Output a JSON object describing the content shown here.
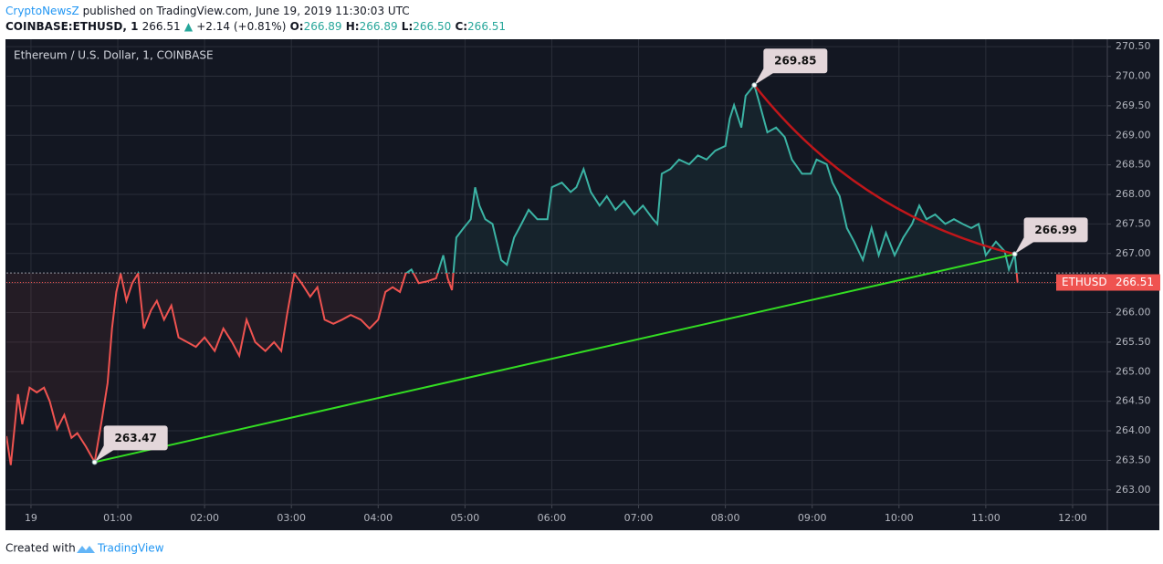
{
  "header": {
    "author": "CryptoNewsZ",
    "published": "published on TradingView.com, June 19, 2019 11:30:03 UTC",
    "symbol": "COINBASE:ETHUSD, 1",
    "price": "266.51",
    "arrow": "▲",
    "change": "+2.14 (+0.81%)",
    "o_label": "O:",
    "o": "266.89",
    "h_label": "H:",
    "h": "266.89",
    "l_label": "L:",
    "l": "266.50",
    "c_label": "C:",
    "c": "266.51"
  },
  "chart_data": {
    "type": "line",
    "title": "Ethereum / U.S. Dollar, 1, COINBASE",
    "x": [
      -17,
      -14,
      -9,
      -6,
      -1,
      4,
      9,
      13,
      18,
      23,
      28,
      32,
      38,
      44,
      49,
      53,
      56,
      59,
      62,
      66,
      70,
      74,
      78,
      83,
      87,
      92,
      97,
      102,
      108,
      114,
      120,
      127,
      133,
      139,
      144,
      149,
      155,
      162,
      168,
      173,
      177,
      182,
      187,
      193,
      198,
      203,
      209,
      215,
      221,
      228,
      234,
      240,
      245,
      250,
      255,
      259,
      263,
      268,
      274,
      280,
      285,
      288,
      291,
      294,
      299,
      304,
      307,
      310,
      314,
      319,
      325,
      329,
      334,
      339,
      344,
      350,
      357,
      360,
      367,
      373,
      377,
      382,
      387,
      393,
      398,
      404,
      410,
      417,
      423,
      430,
      433,
      436,
      442,
      448,
      455,
      461,
      467,
      473,
      480,
      483,
      486,
      491,
      494,
      500,
      503,
      509,
      515,
      521,
      526,
      533,
      539,
      543,
      550,
      554,
      559,
      564,
      569,
      575,
      581,
      586,
      591,
      597,
      603,
      609,
      614,
      619,
      625,
      632,
      638,
      644,
      650,
      655,
      660,
      667,
      673,
      676,
      680,
      682
    ],
    "values": [
      263.91,
      263.42,
      264.62,
      264.11,
      264.73,
      264.65,
      264.73,
      264.5,
      264.03,
      264.27,
      263.88,
      263.96,
      263.73,
      263.47,
      264.19,
      264.81,
      265.73,
      266.35,
      266.66,
      266.2,
      266.5,
      266.66,
      265.73,
      266.04,
      266.2,
      265.88,
      266.12,
      265.58,
      265.5,
      265.42,
      265.58,
      265.35,
      265.73,
      265.5,
      265.27,
      265.88,
      265.5,
      265.35,
      265.5,
      265.35,
      265.96,
      266.66,
      266.5,
      266.27,
      266.43,
      265.88,
      265.81,
      265.88,
      265.96,
      265.88,
      265.73,
      265.88,
      266.35,
      266.43,
      266.35,
      266.66,
      266.73,
      266.5,
      266.53,
      266.58,
      266.97,
      266.58,
      266.38,
      267.27,
      267.43,
      267.58,
      268.12,
      267.81,
      267.58,
      267.5,
      266.89,
      266.81,
      267.27,
      267.5,
      267.74,
      267.58,
      267.58,
      268.12,
      268.2,
      268.04,
      268.12,
      268.43,
      268.04,
      267.81,
      267.97,
      267.74,
      267.89,
      267.66,
      267.81,
      267.58,
      267.5,
      268.35,
      268.43,
      268.59,
      268.51,
      268.66,
      268.59,
      268.74,
      268.82,
      269.28,
      269.51,
      269.13,
      269.67,
      269.85,
      269.59,
      269.05,
      269.13,
      268.97,
      268.59,
      268.35,
      268.35,
      268.59,
      268.51,
      268.2,
      267.97,
      267.43,
      267.2,
      266.89,
      267.43,
      266.97,
      267.35,
      266.97,
      267.27,
      267.5,
      267.81,
      267.58,
      267.66,
      267.5,
      267.58,
      267.5,
      267.43,
      267.5,
      266.97,
      267.2,
      267.04,
      266.73,
      266.99,
      266.51
    ],
    "up_color": "#3bb3a4",
    "down_color": "#ef5350",
    "baseline": 266.67,
    "xlim": [
      -17,
      744
    ],
    "xticks": [
      {
        "value": 0,
        "label": "19"
      },
      {
        "value": 60,
        "label": "01:00"
      },
      {
        "value": 120,
        "label": "02:00"
      },
      {
        "value": 180,
        "label": "03:00"
      },
      {
        "value": 240,
        "label": "04:00"
      },
      {
        "value": 300,
        "label": "05:00"
      },
      {
        "value": 360,
        "label": "06:00"
      },
      {
        "value": 420,
        "label": "07:00"
      },
      {
        "value": 480,
        "label": "08:00"
      },
      {
        "value": 540,
        "label": "09:00"
      },
      {
        "value": 600,
        "label": "10:00"
      },
      {
        "value": 660,
        "label": "11:00"
      },
      {
        "value": 720,
        "label": "12:00"
      }
    ],
    "ylim": [
      262.75,
      270.61
    ],
    "yticks": [
      {
        "value": 263,
        "label": "263.00"
      },
      {
        "value": 263.5,
        "label": "263.50"
      },
      {
        "value": 264,
        "label": "264.00"
      },
      {
        "value": 264.5,
        "label": "264.50"
      },
      {
        "value": 265,
        "label": "265.00"
      },
      {
        "value": 265.5,
        "label": "265.50"
      },
      {
        "value": 266,
        "label": "266.00"
      },
      {
        "value": 266.5,
        "label": "266.50"
      },
      {
        "value": 267,
        "label": "267.00"
      },
      {
        "value": 267.5,
        "label": "267.50"
      },
      {
        "value": 268,
        "label": "268.00"
      },
      {
        "value": 268.5,
        "label": "268.50"
      },
      {
        "value": 269,
        "label": "269.00"
      },
      {
        "value": 269.5,
        "label": "269.50"
      },
      {
        "value": 270,
        "label": "270.00"
      },
      {
        "value": 270.5,
        "label": "270.50"
      }
    ],
    "grid": true,
    "last": {
      "label": "ETHUSD",
      "value": 266.51
    },
    "annotations": [
      {
        "x": 44,
        "value": 263.47
      },
      {
        "x": 500,
        "value": 269.85
      },
      {
        "x": 680,
        "value": 266.99
      }
    ]
  },
  "footer": {
    "text": "Created with",
    "brand": "TradingView"
  }
}
